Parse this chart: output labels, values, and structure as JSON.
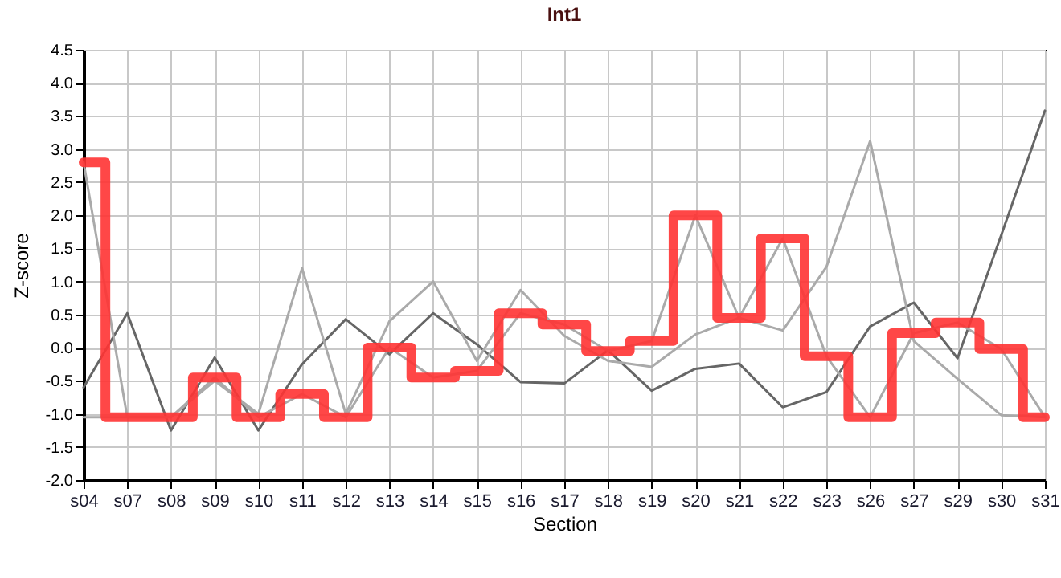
{
  "chart_data": {
    "type": "line",
    "title": "Int1",
    "xlabel": "Section",
    "ylabel": "Z-score",
    "categories": [
      "s04",
      "s07",
      "s08",
      "s09",
      "s10",
      "s11",
      "s12",
      "s13",
      "s14",
      "s15",
      "s16",
      "s17",
      "s18",
      "s19",
      "s20",
      "s21",
      "s22",
      "s23",
      "s26",
      "s27",
      "s29",
      "s30",
      "s31"
    ],
    "series": [
      {
        "color": "#666666",
        "values": [
          -0.6,
          0.52,
          -1.25,
          -0.15,
          -1.25,
          -0.25,
          0.43,
          -0.1,
          0.52,
          0.05,
          -0.52,
          -0.54,
          -0.04,
          -0.65,
          -0.32,
          -0.24,
          -0.9,
          -0.67,
          0.32,
          0.68,
          -0.16,
          1.7,
          3.58
        ]
      },
      {
        "color": "#aaaaaa",
        "values": [
          -1.05,
          -1.05,
          -1.05,
          -0.5,
          -1.0,
          1.2,
          -1.0,
          0.4,
          1.0,
          -0.2,
          0.87,
          0.18,
          -0.2,
          -0.29,
          0.2,
          0.45,
          0.26,
          1.22,
          3.12,
          0.1,
          -0.47,
          -1.02,
          -1.05
        ]
      },
      {
        "color": "#aaaaaa",
        "values": [
          2.8,
          -1.05,
          -1.05,
          -0.45,
          -1.05,
          -0.7,
          -1.05,
          0.0,
          -0.45,
          -0.35,
          0.52,
          0.35,
          -0.05,
          0.1,
          2.0,
          0.45,
          1.65,
          -0.13,
          -1.05,
          0.22,
          0.38,
          -0.02,
          -1.05
        ]
      },
      {
        "type": "step",
        "color": "#ff3333",
        "values": [
          2.8,
          -1.05,
          -1.05,
          -0.45,
          -1.05,
          -0.7,
          -1.05,
          0.0,
          -0.45,
          -0.35,
          0.52,
          0.35,
          -0.05,
          0.1,
          2.0,
          0.45,
          1.65,
          -0.13,
          -1.05,
          0.22,
          0.38,
          -0.02,
          -1.05
        ]
      }
    ],
    "ylim": [
      -2.0,
      4.5
    ],
    "yticks": [
      {
        "value": -2,
        "label": "-2.0"
      },
      -1.5,
      {
        "value": -1,
        "label": "-1.0"
      },
      -0.5,
      {
        "value": 0,
        "label": "0.0"
      },
      0.5,
      {
        "value": 1,
        "label": "1.0"
      },
      1.5,
      {
        "value": 2,
        "label": "2.0"
      },
      2.5,
      {
        "value": 3,
        "label": "3.0"
      },
      3.5,
      {
        "value": 4,
        "label": "4.0"
      },
      4.5
    ],
    "grid": true
  }
}
